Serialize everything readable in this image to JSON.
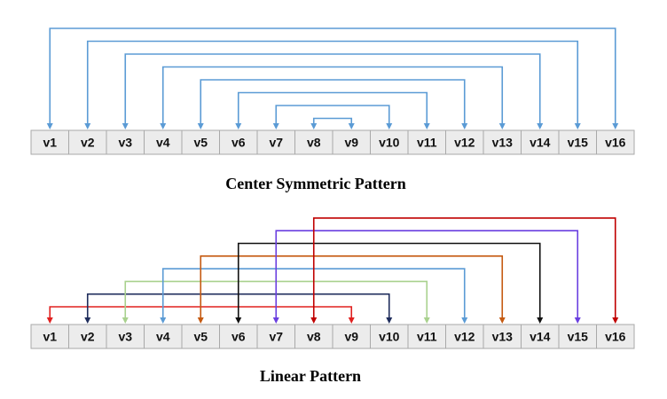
{
  "cell_labels": [
    "v1",
    "v2",
    "v3",
    "v4",
    "v5",
    "v6",
    "v7",
    "v8",
    "v9",
    "v10",
    "v11",
    "v12",
    "v13",
    "v14",
    "v15",
    "v16"
  ],
  "diagrams": [
    {
      "id": "center",
      "caption": "Center Symmetric Pattern",
      "connections": [
        {
          "from": "v1",
          "to": "v16",
          "color": "#5b9bd5"
        },
        {
          "from": "v2",
          "to": "v15",
          "color": "#5b9bd5"
        },
        {
          "from": "v3",
          "to": "v14",
          "color": "#5b9bd5"
        },
        {
          "from": "v4",
          "to": "v13",
          "color": "#5b9bd5"
        },
        {
          "from": "v5",
          "to": "v12",
          "color": "#5b9bd5"
        },
        {
          "from": "v6",
          "to": "v11",
          "color": "#5b9bd5"
        },
        {
          "from": "v7",
          "to": "v10",
          "color": "#5b9bd5"
        },
        {
          "from": "v8",
          "to": "v9",
          "color": "#5b9bd5"
        }
      ]
    },
    {
      "id": "linear",
      "caption": "Linear Pattern",
      "connections": [
        {
          "from": "v1",
          "to": "v9",
          "color": "#e0201f"
        },
        {
          "from": "v2",
          "to": "v10",
          "color": "#1f2d5c"
        },
        {
          "from": "v3",
          "to": "v11",
          "color": "#a9d18e"
        },
        {
          "from": "v4",
          "to": "v12",
          "color": "#5b9bd5"
        },
        {
          "from": "v5",
          "to": "v13",
          "color": "#c55a11"
        },
        {
          "from": "v6",
          "to": "v14",
          "color": "#111111"
        },
        {
          "from": "v7",
          "to": "v15",
          "color": "#6a3fe0"
        },
        {
          "from": "v8",
          "to": "v16",
          "color": "#c00000"
        }
      ]
    }
  ]
}
